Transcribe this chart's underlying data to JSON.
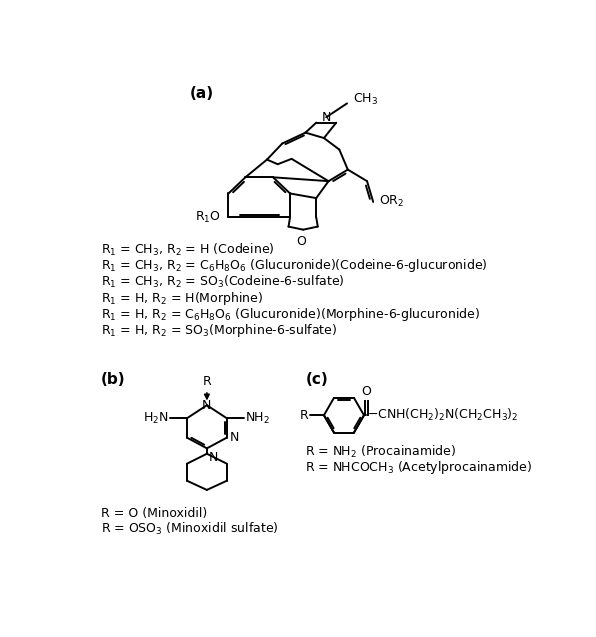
{
  "bg": "#ffffff",
  "fg": "#000000",
  "lw": 1.4,
  "fs": 9.0,
  "fs_title": 11,
  "title_a": "(a)",
  "title_b": "(b)",
  "title_c": "(c)",
  "labels_a": [
    "R$_1$ = CH$_3$, R$_2$ = H (Codeine)",
    "R$_1$ = CH$_3$, R$_2$ = C$_6$H$_8$O$_6$ (Glucuronide)(Codeine-6-glucuronide)",
    "R$_1$ = CH$_3$, R$_2$ = SO$_3$(Codeine-6-sulfate)",
    "R$_1$ = H, R$_2$ = H(Morphine)",
    "R$_1$ = H, R$_2$ = C$_6$H$_8$O$_6$ (Glucuronide)(Morphine-6-glucuronide)",
    "R$_1$ = H, R$_2$ = SO$_3$(Morphine-6-sulfate)"
  ],
  "labels_b": [
    "R = O (Minoxidil)",
    "R = OSO$_3$ (Minoxidil sulfate)"
  ],
  "labels_c": [
    "R = NH$_2$ (Procainamide)",
    "R = NHCOCH$_3$ (Acetylprocainamide)"
  ]
}
